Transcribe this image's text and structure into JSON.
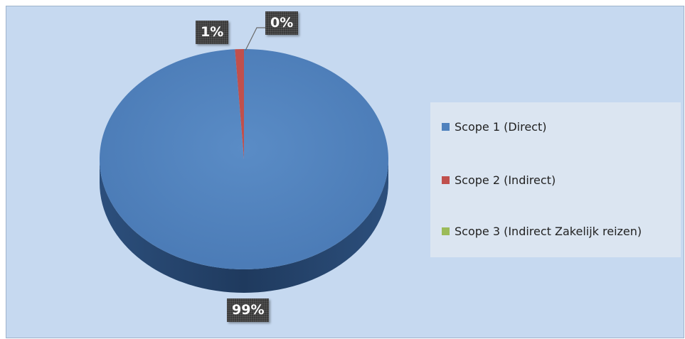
{
  "chart_data": {
    "type": "pie",
    "style": "3d",
    "legend_position": "right",
    "series": [
      {
        "name": "Scope 1 (Direct)",
        "value": 99,
        "label": "99%",
        "color": "#4f81bd",
        "side_color": "#2b4c75"
      },
      {
        "name": "Scope 2 (Indirect)",
        "value": 1,
        "label": "1%",
        "color": "#c0504d",
        "side_color": "#7a2e2c"
      },
      {
        "name": "Scope 3 (Indirect Zakelijk reizen)",
        "value": 0,
        "label": "0%",
        "color": "#9bbb59",
        "side_color": "#5e7a2f"
      }
    ],
    "colors": {
      "plot_background": "#c6d9f0",
      "legend_background": "#dbe5f1",
      "leader_line": "#6a6a6a"
    }
  }
}
